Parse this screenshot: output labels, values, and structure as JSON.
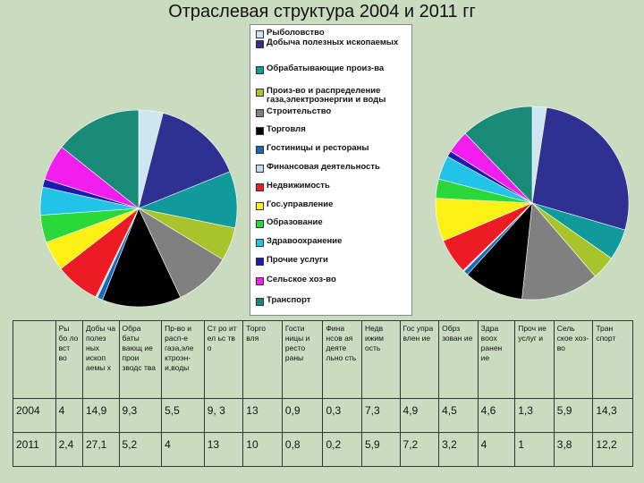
{
  "title": "Отраслевая структура  2004 и 2011 гг",
  "chart_data": {
    "type": "pie",
    "categories": [
      "Рыболовство",
      "Добыча полезных ископаемых",
      "Обрабатывающие произ-ва",
      "Произ-во и распределение газа,электроэнергии и воды",
      "Строительство",
      "Торговля",
      "Гостиницы и рестораны",
      "Финансовая деятельность",
      "Недвижимость",
      "Гос.управление",
      "Образование",
      "Здравоохранение",
      "Прочие услуги",
      "Сельское хоз-во",
      "Транспорт"
    ],
    "colors": [
      "#cde6f2",
      "#2f3192",
      "#119a9b",
      "#a8c42a",
      "#808080",
      "#000000",
      "#1869b8",
      "#c6d9f1",
      "#ed1c24",
      "#fcf014",
      "#2bd83a",
      "#21c4e7",
      "#1b1bb0",
      "#f21ef0",
      "#1a8a78"
    ],
    "series": [
      {
        "name": "2004",
        "values": [
          4,
          14.9,
          9.3,
          5.5,
          9.3,
          13,
          0.9,
          0.3,
          7.3,
          4.9,
          4.5,
          4.6,
          1.3,
          5.9,
          14.3
        ]
      },
      {
        "name": "2011",
        "values": [
          2.4,
          27.1,
          5.2,
          4,
          13,
          10,
          0.8,
          0.2,
          5.9,
          7.2,
          3.2,
          4,
          1,
          3.8,
          12.2
        ]
      }
    ],
    "legend_position": "center"
  },
  "table": {
    "headers": [
      "Ры бо ло вст во",
      "Добы ча полез ных ископ аемы х",
      "Обра баты вающ ие прои зводс тва",
      "Пр-во и расп-е газа,эле ктроэн-и,воды",
      "Ст ро ит ел ьс тв о",
      "Торго вля",
      "Гости ницы и ресто раны",
      "Фина нсов ая деяте льно сть",
      "Недв ижим ость",
      "Гос упра влен ие",
      "Обрз зован ие",
      "Здра воох ранен ие",
      "Проч ие услуг и",
      "Сель ское хоз-во",
      "Тран спорт"
    ],
    "rows": [
      {
        "label": "2004",
        "values": [
          "4",
          "14,9",
          "9,3",
          "5,5",
          "9, 3",
          "13",
          "0,9",
          "0,3",
          "7,3",
          "4,9",
          "4,5",
          "4,6",
          "1,3",
          "5,9",
          "14,3"
        ]
      },
      {
        "label": "2011",
        "values": [
          "2,4",
          "27,1",
          "5,2",
          "4",
          "13",
          "10",
          "0,8",
          "0,2",
          "5,9",
          "7,2",
          "3,2",
          "4",
          "1",
          "3,8",
          "12,2"
        ]
      }
    ]
  }
}
